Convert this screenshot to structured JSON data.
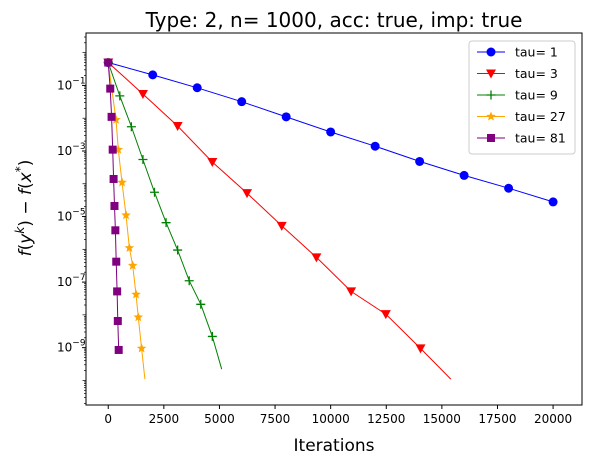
{
  "chart_data": {
    "type": "line",
    "title": "Type: 2, n= 1000, acc: true, imp: true",
    "xlabel": "Iterations",
    "ylabel": "f(y^k) − f(x*)",
    "ylabel_parts": {
      "f1": "f",
      "p1": "(",
      "y": "y",
      "k": "k",
      "mid": ") − ",
      "f2": "f",
      "p2": "(",
      "x": "x",
      "star": "*",
      "p3": ")"
    },
    "xlim": [
      -1000,
      21300
    ],
    "ylim_log10": [
      -10.75,
      0.6
    ],
    "yscale": "log",
    "x_ticks": [
      0,
      2500,
      5000,
      7500,
      10000,
      12500,
      15000,
      17500,
      20000
    ],
    "x_tick_labels": [
      "0",
      "2500",
      "5000",
      "7500",
      "10000",
      "12500",
      "15000",
      "17500",
      "20000"
    ],
    "y_ticks_exp": [
      -1,
      -3,
      -5,
      -7,
      -9
    ],
    "y_tick_labels": [
      {
        "base": "10",
        "exp": "−1"
      },
      {
        "base": "10",
        "exp": "−3"
      },
      {
        "base": "10",
        "exp": "−5"
      },
      {
        "base": "10",
        "exp": "−7"
      },
      {
        "base": "10",
        "exp": "−9"
      }
    ],
    "legend_position": "top-right",
    "series": [
      {
        "name": "tau= 1",
        "color": "#0000ff",
        "marker": "circle",
        "x": [
          0,
          2000,
          4000,
          6000,
          8000,
          10000,
          12000,
          14000,
          16000,
          18000,
          20000
        ],
        "y": [
          0.5,
          0.21,
          0.085,
          0.032,
          0.011,
          0.0038,
          0.0014,
          0.00048,
          0.00018,
          7.3e-05,
          2.8e-05
        ]
      },
      {
        "name": "tau= 3",
        "color": "#ff0000",
        "marker": "triangle-down",
        "x": [
          0,
          1560,
          3120,
          4680,
          6240,
          7800,
          9360,
          10920,
          12480,
          14040,
          15400
        ],
        "y": [
          0.5,
          0.055,
          0.0058,
          0.00046,
          5.2e-05,
          5.2e-06,
          5.7e-07,
          5.2e-08,
          1.05e-08,
          9.5e-10,
          1.1e-10
        ]
      },
      {
        "name": "tau= 9",
        "color": "#008000",
        "marker": "plus",
        "x": [
          0,
          520,
          1040,
          1560,
          2080,
          2600,
          3120,
          3640,
          4160,
          4680,
          5100
        ],
        "y": [
          0.5,
          0.048,
          0.0055,
          0.00055,
          5.5e-05,
          6.5e-06,
          9.5e-07,
          1.1e-07,
          2.1e-08,
          2.2e-09,
          2.2e-10
        ]
      },
      {
        "name": "tau= 27",
        "color": "#ffa500",
        "marker": "star",
        "x": [
          0,
          350,
          450,
          620,
          800,
          950,
          1100,
          1250,
          1350,
          1500,
          1650
        ],
        "y": [
          0.5,
          0.009,
          0.0011,
          0.00011,
          1.1e-05,
          1.1e-06,
          3.2e-07,
          4.2e-08,
          8.5e-09,
          9.5e-10,
          1.1e-10
        ]
      },
      {
        "name": "tau= 81",
        "color": "#800080",
        "marker": "square",
        "x": [
          0,
          90,
          150,
          200,
          240,
          280,
          320,
          360,
          400,
          430,
          470
        ],
        "y": [
          0.5,
          0.08,
          0.011,
          0.0011,
          0.00014,
          2.1e-05,
          3.8e-06,
          4.2e-07,
          5.2e-08,
          6.5e-09,
          8.5e-10
        ]
      }
    ]
  }
}
